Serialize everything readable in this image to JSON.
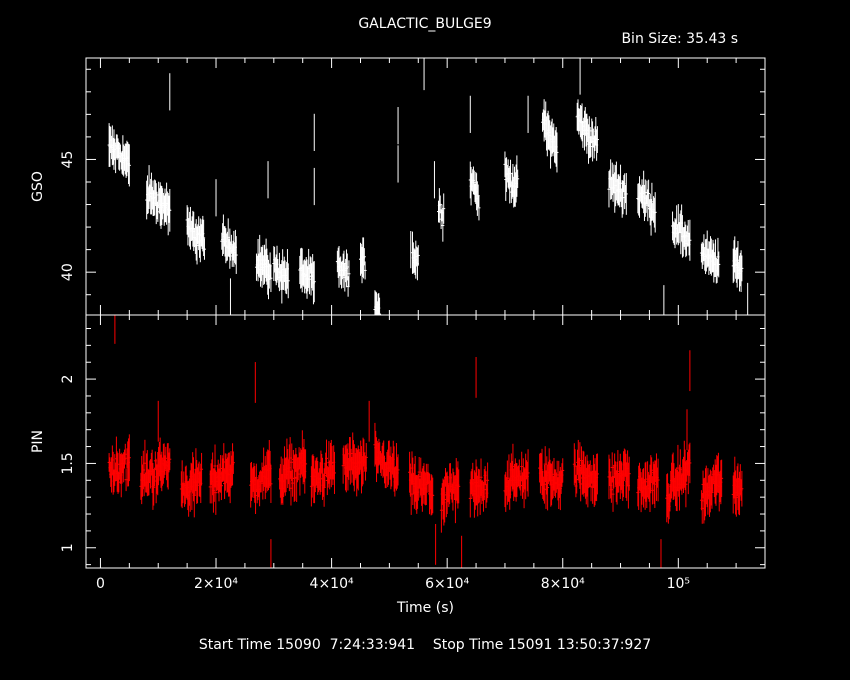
{
  "title": "GALACTIC_BULGE9",
  "bin_size": "Bin Size: 35.43 s",
  "footer": "Start Time 15090  7:24:33:941    Stop Time 15091 13:50:37:927",
  "colors": {
    "background": "#000000",
    "axes": "#ffffff",
    "gso_series": "#ffffff",
    "pin_series": "#ff0000"
  },
  "chart_data": [
    {
      "type": "scatter",
      "xlabel": "",
      "ylabel": "GSO",
      "xlim": [
        -2500,
        115000
      ],
      "ylim": [
        38.1,
        49.5
      ],
      "yticks": [
        "40",
        "45"
      ],
      "grid": false,
      "series": [
        {
          "name": "",
          "color": "#ffffff",
          "segments": [
            {
              "x0": 1500,
              "x1": 5000,
              "y_start": 45.6,
              "y_end": 44.8
            },
            {
              "x0": 8000,
              "x1": 12000,
              "y_start": 43.5,
              "y_end": 42.8
            },
            {
              "x0": 15000,
              "x1": 18000,
              "y_start": 41.9,
              "y_end": 41.4
            },
            {
              "x0": 21000,
              "x1": 23500,
              "y_start": 41.3,
              "y_end": 41.0
            },
            {
              "x0": 27000,
              "x1": 29500,
              "y_start": 40.6,
              "y_end": 40.0
            },
            {
              "x0": 30000,
              "x1": 32500,
              "y_start": 40.2,
              "y_end": 39.8
            },
            {
              "x0": 34500,
              "x1": 37000,
              "y_start": 40.1,
              "y_end": 39.6
            },
            {
              "x0": 41000,
              "x1": 43000,
              "y_start": 40.2,
              "y_end": 39.8
            },
            {
              "x0": 45000,
              "x1": 45800,
              "y_start": 40.5,
              "y_end": 40.3
            },
            {
              "x0": 47500,
              "x1": 48300,
              "y_start": 38.6,
              "y_end": 38.4
            },
            {
              "x0": 54000,
              "x1": 55000,
              "y_start": 40.8,
              "y_end": 40.5
            },
            {
              "x0": 58500,
              "x1": 59400,
              "y_start": 42.8,
              "y_end": 42.6
            },
            {
              "x0": 64000,
              "x1": 65500,
              "y_start": 44.3,
              "y_end": 43.2
            },
            {
              "x0": 70000,
              "x1": 72200,
              "y_start": 44.3,
              "y_end": 43.8
            },
            {
              "x0": 76500,
              "x1": 79000,
              "y_start": 46.7,
              "y_end": 45.5
            },
            {
              "x0": 82500,
              "x1": 86000,
              "y_start": 46.8,
              "y_end": 45.6
            },
            {
              "x0": 88000,
              "x1": 91000,
              "y_start": 44.0,
              "y_end": 43.5
            },
            {
              "x0": 93000,
              "x1": 96000,
              "y_start": 43.5,
              "y_end": 42.8
            },
            {
              "x0": 99000,
              "x1": 102000,
              "y_start": 42.0,
              "y_end": 41.4
            },
            {
              "x0": 104000,
              "x1": 107000,
              "y_start": 40.8,
              "y_end": 40.3
            },
            {
              "x0": 109500,
              "x1": 111000,
              "y_start": 40.4,
              "y_end": 40.2
            }
          ],
          "outliers": [
            {
              "x": 12000,
              "y": 48.0
            },
            {
              "x": 20000,
              "y": 43.3
            },
            {
              "x": 22500,
              "y": 38.9
            },
            {
              "x": 29000,
              "y": 44.1
            },
            {
              "x": 37000,
              "y": 46.2
            },
            {
              "x": 37000,
              "y": 43.8
            },
            {
              "x": 51500,
              "y": 46.5
            },
            {
              "x": 51500,
              "y": 44.8
            },
            {
              "x": 53700,
              "y": 41.0
            },
            {
              "x": 56000,
              "y": 48.9
            },
            {
              "x": 57800,
              "y": 44.1
            },
            {
              "x": 64000,
              "y": 47.0
            },
            {
              "x": 74000,
              "y": 47.0
            },
            {
              "x": 83000,
              "y": 48.7
            },
            {
              "x": 97500,
              "y": 38.6
            },
            {
              "x": 112000,
              "y": 38.7
            }
          ]
        }
      ]
    },
    {
      "type": "scatter",
      "xlabel": "Time (s)",
      "ylabel": "PIN",
      "xlim": [
        -2500,
        115000
      ],
      "ylim": [
        0.88,
        2.38
      ],
      "yticks": [
        "1",
        "1.5",
        "2"
      ],
      "xticks": [
        {
          "value": 0,
          "label": "0"
        },
        {
          "value": 20000,
          "label": "2×10⁴"
        },
        {
          "value": 40000,
          "label": "4×10⁴"
        },
        {
          "value": 60000,
          "label": "6×10⁴"
        },
        {
          "value": 80000,
          "label": "8×10⁴"
        },
        {
          "value": 100000,
          "label": "10⁵"
        }
      ],
      "grid": false,
      "series": [
        {
          "name": "",
          "color": "#ff0000",
          "segments": [
            {
              "x0": 1500,
              "x1": 5000,
              "y_start": 1.45,
              "y_end": 1.5
            },
            {
              "x0": 7000,
              "x1": 12000,
              "y_start": 1.4,
              "y_end": 1.5
            },
            {
              "x0": 14000,
              "x1": 17500,
              "y_start": 1.35,
              "y_end": 1.4
            },
            {
              "x0": 19000,
              "x1": 23000,
              "y_start": 1.38,
              "y_end": 1.48
            },
            {
              "x0": 26000,
              "x1": 29500,
              "y_start": 1.35,
              "y_end": 1.45
            },
            {
              "x0": 31000,
              "x1": 35500,
              "y_start": 1.42,
              "y_end": 1.5
            },
            {
              "x0": 36500,
              "x1": 40500,
              "y_start": 1.4,
              "y_end": 1.46
            },
            {
              "x0": 42000,
              "x1": 46000,
              "y_start": 1.5,
              "y_end": 1.48
            },
            {
              "x0": 47500,
              "x1": 51500,
              "y_start": 1.52,
              "y_end": 1.44
            },
            {
              "x0": 53500,
              "x1": 57500,
              "y_start": 1.38,
              "y_end": 1.34
            },
            {
              "x0": 59000,
              "x1": 62000,
              "y_start": 1.3,
              "y_end": 1.35
            },
            {
              "x0": 64000,
              "x1": 67000,
              "y_start": 1.33,
              "y_end": 1.38
            },
            {
              "x0": 70000,
              "x1": 74000,
              "y_start": 1.38,
              "y_end": 1.42
            },
            {
              "x0": 76000,
              "x1": 80000,
              "y_start": 1.42,
              "y_end": 1.4
            },
            {
              "x0": 82000,
              "x1": 86000,
              "y_start": 1.45,
              "y_end": 1.42
            },
            {
              "x0": 88000,
              "x1": 91500,
              "y_start": 1.38,
              "y_end": 1.45
            },
            {
              "x0": 93000,
              "x1": 96500,
              "y_start": 1.35,
              "y_end": 1.4
            },
            {
              "x0": 98000,
              "x1": 102000,
              "y_start": 1.32,
              "y_end": 1.48
            },
            {
              "x0": 104000,
              "x1": 107500,
              "y_start": 1.3,
              "y_end": 1.42
            },
            {
              "x0": 109500,
              "x1": 111000,
              "y_start": 1.32,
              "y_end": 1.38
            }
          ],
          "outliers": [
            {
              "x": 2500,
              "y": 2.33
            },
            {
              "x": 10000,
              "y": 1.75
            },
            {
              "x": 26800,
              "y": 1.98
            },
            {
              "x": 29500,
              "y": 0.93
            },
            {
              "x": 46500,
              "y": 1.75
            },
            {
              "x": 58000,
              "y": 1.02
            },
            {
              "x": 62500,
              "y": 0.95
            },
            {
              "x": 65000,
              "y": 2.01
            },
            {
              "x": 97000,
              "y": 0.93
            },
            {
              "x": 102000,
              "y": 2.05
            },
            {
              "x": 101500,
              "y": 1.7
            }
          ]
        }
      ]
    }
  ]
}
